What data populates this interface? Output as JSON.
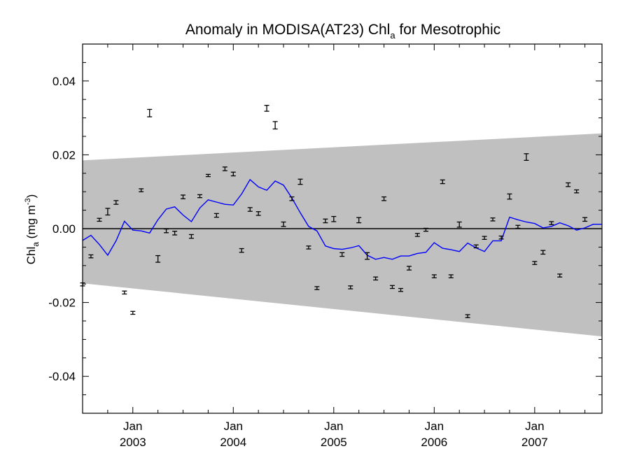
{
  "chart_data": {
    "type": "line",
    "title": {
      "main": "Anomaly in MODISA(AT23) Chl",
      "main_sub": "a",
      "suffix": " for Mesotrophic"
    },
    "xlabel": "",
    "ylabel": {
      "main": "Chl",
      "sub": "a",
      "units": " (mg m",
      "units_sup": "-3",
      "units_close": ")"
    },
    "xlim": [
      2002.5,
      2007.67
    ],
    "ylim": [
      -0.05,
      0.05
    ],
    "x_tick_labels": [
      {
        "x": 2003.0,
        "month": "Jan",
        "year": "2003"
      },
      {
        "x": 2004.0,
        "month": "Jan",
        "year": "2004"
      },
      {
        "x": 2005.0,
        "month": "Jan",
        "year": "2005"
      },
      {
        "x": 2006.0,
        "month": "Jan",
        "year": "2006"
      },
      {
        "x": 2007.0,
        "month": "Jan",
        "year": "2007"
      }
    ],
    "y_ticks": [
      -0.04,
      -0.02,
      0.0,
      0.02,
      0.04
    ],
    "y_tick_labels": [
      "-0.04",
      "-0.02",
      "0.00",
      "0.02",
      "0.04"
    ],
    "zero_line": 0.0,
    "colors": {
      "band": "#c0c0c0",
      "line": "#0000ff",
      "points": "#000000"
    },
    "band": {
      "upper": [
        [
          2002.5,
          0.0185
        ],
        [
          2007.67,
          0.0258
        ]
      ],
      "lower": [
        [
          2002.5,
          -0.0148
        ],
        [
          2007.67,
          -0.0292
        ]
      ]
    },
    "series": [
      {
        "type": "line",
        "points": [
          [
            2002.5,
            -0.0032
          ],
          [
            2002.583,
            -0.0018
          ],
          [
            2002.667,
            -0.0043
          ],
          [
            2002.75,
            -0.0072
          ],
          [
            2002.833,
            -0.0033
          ],
          [
            2002.917,
            0.002
          ],
          [
            2003.0,
            -0.0004
          ],
          [
            2003.083,
            -0.0006
          ],
          [
            2003.167,
            -0.0012
          ],
          [
            2003.25,
            0.0024
          ],
          [
            2003.333,
            0.0053
          ],
          [
            2003.417,
            0.0059
          ],
          [
            2003.5,
            0.0037
          ],
          [
            2003.583,
            0.0019
          ],
          [
            2003.667,
            0.0056
          ],
          [
            2003.75,
            0.0078
          ],
          [
            2003.833,
            0.0072
          ],
          [
            2003.917,
            0.0066
          ],
          [
            2004.0,
            0.0064
          ],
          [
            2004.083,
            0.0094
          ],
          [
            2004.167,
            0.0133
          ],
          [
            2004.25,
            0.0113
          ],
          [
            2004.333,
            0.0104
          ],
          [
            2004.417,
            0.0129
          ],
          [
            2004.5,
            0.0118
          ],
          [
            2004.583,
            0.0083
          ],
          [
            2004.667,
            0.0043
          ],
          [
            2004.75,
            0.0006
          ],
          [
            2004.833,
            -0.0006
          ],
          [
            2004.917,
            -0.0047
          ],
          [
            2005.0,
            -0.0054
          ],
          [
            2005.083,
            -0.0056
          ],
          [
            2005.167,
            -0.0052
          ],
          [
            2005.25,
            -0.0046
          ],
          [
            2005.333,
            -0.0072
          ],
          [
            2005.417,
            -0.0083
          ],
          [
            2005.5,
            -0.0078
          ],
          [
            2005.583,
            -0.0083
          ],
          [
            2005.667,
            -0.0074
          ],
          [
            2005.75,
            -0.0074
          ],
          [
            2005.833,
            -0.0067
          ],
          [
            2005.917,
            -0.0064
          ],
          [
            2006.0,
            -0.0038
          ],
          [
            2006.083,
            -0.0053
          ],
          [
            2006.167,
            -0.0057
          ],
          [
            2006.25,
            -0.0062
          ],
          [
            2006.333,
            -0.0039
          ],
          [
            2006.417,
            -0.0052
          ],
          [
            2006.5,
            -0.0062
          ],
          [
            2006.583,
            -0.0033
          ],
          [
            2006.667,
            -0.0033
          ],
          [
            2006.75,
            0.0031
          ],
          [
            2006.833,
            0.0024
          ],
          [
            2006.917,
            0.0018
          ],
          [
            2007.0,
            0.0014
          ],
          [
            2007.083,
            0.0002
          ],
          [
            2007.167,
            0.0006
          ],
          [
            2007.25,
            0.0016
          ],
          [
            2007.333,
            0.0008
          ],
          [
            2007.417,
            -0.0004
          ],
          [
            2007.5,
            0.0002
          ],
          [
            2007.583,
            0.0012
          ],
          [
            2007.67,
            0.0012
          ]
        ]
      },
      {
        "type": "errorbar",
        "points": [
          [
            2002.5,
            -0.0151,
            0.0004
          ],
          [
            2002.583,
            -0.0075,
            0.0004
          ],
          [
            2002.667,
            0.0024,
            0.0004
          ],
          [
            2002.75,
            0.0046,
            0.0009
          ],
          [
            2002.833,
            0.0071,
            0.0005
          ],
          [
            2002.917,
            -0.0173,
            0.0004
          ],
          [
            2003.0,
            -0.0228,
            0.0004
          ],
          [
            2003.083,
            0.0104,
            0.0004
          ],
          [
            2003.167,
            0.0313,
            0.001
          ],
          [
            2003.25,
            -0.0082,
            0.0009
          ],
          [
            2003.333,
            -0.0006,
            0.0005
          ],
          [
            2003.417,
            -0.0012,
            0.0005
          ],
          [
            2003.5,
            0.0086,
            0.0005
          ],
          [
            2003.583,
            -0.0021,
            0.0005
          ],
          [
            2003.667,
            0.0088,
            0.0004
          ],
          [
            2003.75,
            0.0144,
            0.0003
          ],
          [
            2003.833,
            0.0036,
            0.0005
          ],
          [
            2003.917,
            0.0162,
            0.0005
          ],
          [
            2004.0,
            0.0148,
            0.0005
          ],
          [
            2004.083,
            -0.0059,
            0.0005
          ],
          [
            2004.167,
            0.0052,
            0.0005
          ],
          [
            2004.25,
            0.0041,
            0.0005
          ],
          [
            2004.333,
            0.0326,
            0.0008
          ],
          [
            2004.417,
            0.028,
            0.001
          ],
          [
            2004.5,
            0.0012,
            0.0006
          ],
          [
            2004.583,
            0.0081,
            0.0005
          ],
          [
            2004.667,
            0.0127,
            0.0007
          ],
          [
            2004.75,
            -0.0051,
            0.0004
          ],
          [
            2004.833,
            -0.0161,
            0.0004
          ],
          [
            2004.917,
            0.0021,
            0.0005
          ],
          [
            2005.0,
            0.0026,
            0.0007
          ],
          [
            2005.083,
            -0.007,
            0.0005
          ],
          [
            2005.167,
            -0.0159,
            0.0004
          ],
          [
            2005.25,
            0.0023,
            0.0007
          ],
          [
            2005.333,
            -0.0074,
            0.0009
          ],
          [
            2005.417,
            -0.0135,
            0.0004
          ],
          [
            2005.5,
            0.0081,
            0.0005
          ],
          [
            2005.583,
            -0.0158,
            0.0004
          ],
          [
            2005.667,
            -0.0166,
            0.0004
          ],
          [
            2005.75,
            -0.0107,
            0.0005
          ],
          [
            2005.833,
            -0.0017,
            0.0004
          ],
          [
            2005.917,
            -0.0003,
            0.0004
          ],
          [
            2006.0,
            -0.0129,
            0.0004
          ],
          [
            2006.083,
            0.0127,
            0.0005
          ],
          [
            2006.167,
            -0.0129,
            0.0004
          ],
          [
            2006.25,
            0.0011,
            0.0007
          ],
          [
            2006.333,
            -0.0237,
            0.0004
          ],
          [
            2006.417,
            -0.0048,
            0.0004
          ],
          [
            2006.5,
            -0.0025,
            0.0004
          ],
          [
            2006.583,
            0.0025,
            0.0004
          ],
          [
            2006.667,
            -0.0024,
            0.0004
          ],
          [
            2006.75,
            0.0087,
            0.0007
          ],
          [
            2006.833,
            0.0005,
            0.0004
          ],
          [
            2006.917,
            0.0194,
            0.0009
          ],
          [
            2007.0,
            -0.0093,
            0.0004
          ],
          [
            2007.083,
            -0.0064,
            0.0005
          ],
          [
            2007.167,
            0.0015,
            0.0004
          ],
          [
            2007.25,
            -0.0127,
            0.0004
          ],
          [
            2007.333,
            0.0119,
            0.0005
          ],
          [
            2007.417,
            0.0101,
            0.0004
          ],
          [
            2007.5,
            0.0025,
            0.0005
          ]
        ]
      }
    ]
  }
}
